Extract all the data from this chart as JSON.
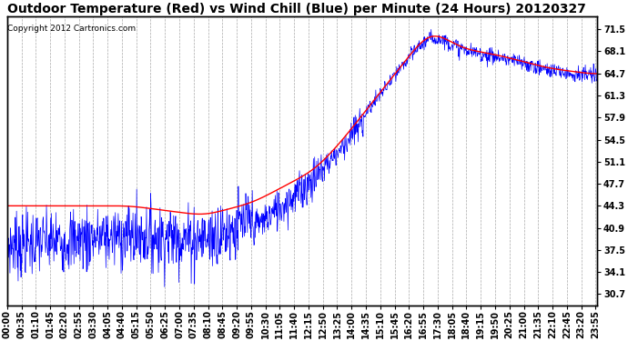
{
  "title": "Outdoor Temperature (Red) vs Wind Chill (Blue) per Minute (24 Hours) 20120327",
  "copyright_text": "Copyright 2012 Cartronics.com",
  "yticks": [
    30.7,
    34.1,
    37.5,
    40.9,
    44.3,
    47.7,
    51.1,
    54.5,
    57.9,
    61.3,
    64.7,
    68.1,
    71.5
  ],
  "ymin": 29.0,
  "ymax": 73.5,
  "total_minutes": 1440,
  "x_tick_labels": [
    "00:00",
    "00:35",
    "01:10",
    "01:45",
    "02:20",
    "02:55",
    "03:30",
    "04:05",
    "04:40",
    "05:15",
    "05:50",
    "06:25",
    "07:00",
    "07:35",
    "08:10",
    "08:45",
    "09:20",
    "09:55",
    "10:30",
    "11:05",
    "11:40",
    "12:15",
    "12:50",
    "13:25",
    "14:00",
    "14:35",
    "15:10",
    "15:45",
    "16:20",
    "16:55",
    "17:30",
    "18:05",
    "18:40",
    "19:15",
    "19:50",
    "20:25",
    "21:00",
    "21:35",
    "22:10",
    "22:45",
    "23:20",
    "23:55"
  ],
  "bg_color": "#ffffff",
  "grid_color": "#aaaaaa",
  "temp_color": "red",
  "wind_color": "blue",
  "title_fontsize": 10,
  "tick_fontsize": 7
}
